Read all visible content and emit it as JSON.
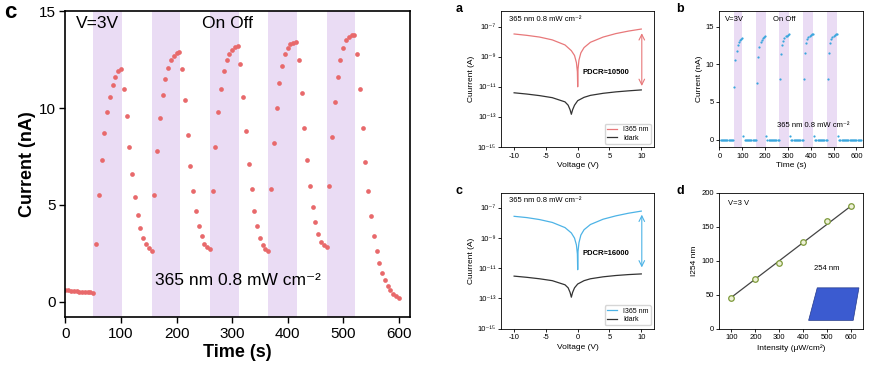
{
  "chart_data": [
    {
      "type": "scatter",
      "title": "c",
      "xlabel": "Time (s)",
      "ylabel": "Current (nA)",
      "annotations": [
        "V=3V",
        "On Off",
        "365 nm 0.8 mW cm⁻²"
      ],
      "color": "#e8696b",
      "marker": "o",
      "line_style": "none",
      "on_periods": [
        [
          50,
          102
        ],
        [
          155,
          207
        ],
        [
          260,
          312
        ],
        [
          365,
          417
        ],
        [
          470,
          522
        ]
      ],
      "x": [
        0,
        5,
        10,
        15,
        20,
        25,
        30,
        35,
        40,
        45,
        50,
        55,
        60,
        65,
        70,
        75,
        80,
        85,
        90,
        95,
        100,
        105,
        110,
        115,
        120,
        125,
        130,
        135,
        140,
        145,
        150,
        155,
        160,
        165,
        170,
        175,
        180,
        185,
        190,
        195,
        200,
        205,
        210,
        215,
        220,
        225,
        230,
        235,
        240,
        245,
        250,
        255,
        260,
        265,
        270,
        275,
        280,
        285,
        290,
        295,
        300,
        305,
        310,
        315,
        320,
        325,
        330,
        335,
        340,
        345,
        350,
        355,
        360,
        365,
        370,
        375,
        380,
        385,
        390,
        395,
        400,
        405,
        410,
        415,
        420,
        425,
        430,
        435,
        440,
        445,
        450,
        455,
        460,
        465,
        470,
        475,
        480,
        485,
        490,
        495,
        500,
        505,
        510,
        515,
        520,
        525,
        530,
        535,
        540,
        545,
        550,
        555,
        560,
        565,
        570,
        575,
        580,
        585,
        590,
        595,
        600
      ],
      "values": [
        0.6,
        0.58,
        0.56,
        0.55,
        0.53,
        0.52,
        0.5,
        0.5,
        0.48,
        0.47,
        0.46,
        3.0,
        5.5,
        7.3,
        8.7,
        9.8,
        10.6,
        11.2,
        11.6,
        11.9,
        12.0,
        11.0,
        9.6,
        8.0,
        6.6,
        5.4,
        4.5,
        3.8,
        3.3,
        3.0,
        2.75,
        2.6,
        5.5,
        7.8,
        9.5,
        10.7,
        11.5,
        12.1,
        12.5,
        12.7,
        12.85,
        12.9,
        12.0,
        10.4,
        8.6,
        7.0,
        5.7,
        4.7,
        3.9,
        3.4,
        3.0,
        2.8,
        2.7,
        5.7,
        8.0,
        9.8,
        11.0,
        11.9,
        12.5,
        12.8,
        13.0,
        13.15,
        13.2,
        12.3,
        10.6,
        8.8,
        7.1,
        5.8,
        4.7,
        3.9,
        3.3,
        2.9,
        2.7,
        2.6,
        5.8,
        8.2,
        10.0,
        11.3,
        12.2,
        12.8,
        13.1,
        13.3,
        13.35,
        13.4,
        12.5,
        10.8,
        9.0,
        7.3,
        6.0,
        4.9,
        4.1,
        3.5,
        3.1,
        2.9,
        2.8,
        6.0,
        8.5,
        10.3,
        11.6,
        12.5,
        13.1,
        13.5,
        13.7,
        13.8,
        13.8,
        12.8,
        11.0,
        9.0,
        7.2,
        5.7,
        4.4,
        3.4,
        2.6,
        2.0,
        1.5,
        1.1,
        0.8,
        0.6,
        0.4,
        0.3,
        0.2
      ],
      "xlim": [
        0,
        620
      ],
      "xticks": [
        0,
        100,
        200,
        300,
        400,
        500,
        600
      ],
      "ylim": [
        -0.8,
        15
      ],
      "yticks": [
        0,
        5,
        10,
        15
      ]
    },
    {
      "type": "line",
      "title": "a",
      "xlabel": "Voltage (V)",
      "ylabel": "Cuurrent (A)",
      "log": "y",
      "annotations": [
        "365 nm 0.8 mW cm⁻²",
        "PDCR≈10500"
      ],
      "legend": "lower right",
      "series": [
        {
          "name": "I365 nm",
          "color": "#e8787a",
          "x": [
            -10,
            -8,
            -6,
            -4,
            -2,
            -1,
            -0.5,
            -0.2,
            -0.05,
            0,
            0.05,
            0.2,
            0.5,
            1,
            2,
            4,
            6,
            8,
            10
          ],
          "values": [
            3.2e-08,
            2.6e-08,
            2e-08,
            1.3e-08,
            6e-09,
            2.5e-09,
            1.2e-09,
            4e-10,
            1e-10,
            1e-11,
            1.5e-10,
            6e-10,
            1.8e-09,
            4e-09,
            9e-09,
            2e-08,
            3.4e-08,
            5e-08,
            6.8e-08
          ]
        },
        {
          "name": "Idark",
          "color": "#333333",
          "x": [
            -10,
            -8,
            -6,
            -4,
            -2,
            -1.5,
            -1.2,
            -1,
            -0.8,
            -0.5,
            0,
            1,
            2,
            4,
            6,
            8,
            10
          ],
          "values": [
            4e-12,
            3.3e-12,
            2.6e-12,
            1.9e-12,
            1e-12,
            6e-13,
            3e-13,
            1.5e-13,
            3e-13,
            6e-13,
            1.2e-12,
            2e-12,
            2.7e-12,
            3.7e-12,
            4.6e-12,
            5.4e-12,
            6.2e-12
          ]
        }
      ],
      "xlim": [
        -12,
        12
      ],
      "xticks": [
        -10,
        -5,
        0,
        5,
        10
      ],
      "ylim": [
        1e-15,
        1e-06
      ],
      "yticks": [
        {
          "value": 1e-15,
          "label": "10⁻¹⁵"
        },
        {
          "value": 1e-13,
          "label": "10⁻¹³"
        },
        {
          "value": 1e-11,
          "label": "10⁻¹¹"
        },
        {
          "value": 1e-09,
          "label": "10⁻⁹"
        },
        {
          "value": 1e-07,
          "label": "10⁻⁷"
        }
      ]
    },
    {
      "type": "scatter",
      "title": "b",
      "xlabel": "Time (s)",
      "ylabel": "Current (nA)",
      "annotations": [
        "V=3V",
        "On Off",
        "365 nm 0.8 mW cm⁻²"
      ],
      "color": "#3aa6dd",
      "marker": "o",
      "line_style": "none",
      "on_periods": [
        [
          62,
          100
        ],
        [
          162,
          202
        ],
        [
          262,
          306
        ],
        [
          367,
          410
        ],
        [
          472,
          516
        ]
      ],
      "x": [
        0,
        5,
        10,
        15,
        20,
        25,
        30,
        35,
        40,
        45,
        50,
        55,
        60,
        65,
        70,
        75,
        80,
        85,
        90,
        95,
        100,
        105,
        110,
        115,
        120,
        125,
        130,
        135,
        140,
        145,
        150,
        155,
        160,
        165,
        170,
        175,
        180,
        185,
        190,
        195,
        200,
        205,
        210,
        215,
        220,
        225,
        230,
        235,
        240,
        245,
        250,
        255,
        260,
        265,
        270,
        275,
        280,
        285,
        290,
        295,
        300,
        305,
        310,
        315,
        320,
        325,
        330,
        335,
        340,
        345,
        350,
        355,
        360,
        365,
        370,
        375,
        380,
        385,
        390,
        395,
        400,
        405,
        410,
        415,
        420,
        425,
        430,
        435,
        440,
        445,
        450,
        455,
        460,
        465,
        470,
        475,
        480,
        485,
        490,
        495,
        500,
        505,
        510,
        515,
        520,
        525,
        530,
        535,
        540,
        545,
        550,
        555,
        560,
        565,
        570,
        575,
        580,
        585,
        590,
        595,
        600,
        605,
        610,
        615,
        620
      ],
      "values": [
        0,
        0,
        0,
        0,
        0,
        0,
        0,
        0,
        0,
        0,
        0,
        0,
        0,
        7.0,
        10.5,
        11.8,
        12.5,
        12.9,
        13.2,
        13.4,
        13.5,
        0.5,
        0,
        0,
        0,
        0,
        0,
        0,
        0,
        0,
        0,
        0,
        0,
        7.5,
        11.0,
        12.3,
        12.9,
        13.2,
        13.5,
        13.6,
        13.7,
        0.5,
        0,
        0,
        0,
        0,
        0,
        0,
        0,
        0,
        0,
        0,
        0,
        8.0,
        11.3,
        12.6,
        13.1,
        13.5,
        13.7,
        13.8,
        13.9,
        14.0,
        0.5,
        0,
        0,
        0,
        0,
        0,
        0,
        0,
        0,
        0,
        0,
        0,
        8.0,
        11.5,
        12.8,
        13.3,
        13.6,
        13.8,
        13.9,
        14.0,
        14.0,
        0.5,
        0,
        0,
        0,
        0,
        0,
        0,
        0,
        0,
        0,
        0,
        0,
        8.0,
        11.5,
        12.8,
        13.3,
        13.6,
        13.8,
        13.9,
        14.0,
        14.0,
        0.5,
        0,
        0,
        0,
        0,
        0,
        0,
        0,
        0,
        0,
        0,
        0,
        0,
        0,
        0,
        0,
        0,
        0,
        0,
        0,
        0
      ],
      "xlim": [
        0,
        630
      ],
      "xticks": [
        0,
        100,
        200,
        300,
        400,
        500,
        600
      ],
      "ylim": [
        -1,
        17
      ],
      "yticks": [
        0,
        5,
        10,
        15
      ]
    },
    {
      "type": "line",
      "title": "c",
      "xlabel": "Voltage (V)",
      "ylabel": "Cuurrent (A)",
      "log": "y",
      "annotations": [
        "365 nm 0.8 mW cm⁻²",
        "PDCR≈16000"
      ],
      "legend": "lower right",
      "series": [
        {
          "name": "I365 nm",
          "color": "#4db3e6",
          "x": [
            -10,
            -8,
            -6,
            -4,
            -2,
            -1,
            -0.5,
            -0.2,
            -0.05,
            0,
            0.05,
            0.2,
            0.5,
            1,
            2,
            4,
            6,
            8,
            10
          ],
          "values": [
            2.8e-08,
            2.3e-08,
            1.7e-08,
            1.1e-08,
            5e-09,
            2.2e-09,
            1e-09,
            3.5e-10,
            9e-11,
            8e-12,
            1.3e-10,
            5e-10,
            1.6e-09,
            3.6e-09,
            8e-09,
            1.8e-08,
            3e-08,
            4.5e-08,
            6.2e-08
          ]
        },
        {
          "name": "Idark",
          "color": "#333333",
          "x": [
            -10,
            -8,
            -6,
            -4,
            -2,
            -1.5,
            -1.2,
            -1,
            -0.8,
            -0.5,
            0,
            1,
            2,
            4,
            6,
            8,
            10
          ],
          "values": [
            3e-12,
            2.5e-12,
            2e-12,
            1.5e-12,
            8e-13,
            5e-13,
            2.5e-13,
            1.2e-13,
            2.5e-13,
            5e-13,
            9e-13,
            1.5e-12,
            2e-12,
            2.7e-12,
            3.3e-12,
            3.8e-12,
            4.2e-12
          ]
        }
      ],
      "xlim": [
        -12,
        12
      ],
      "xticks": [
        -10,
        -5,
        0,
        5,
        10
      ],
      "ylim": [
        1e-15,
        1e-06
      ],
      "yticks": [
        {
          "value": 1e-15,
          "label": "10⁻¹⁵"
        },
        {
          "value": 1e-13,
          "label": "10⁻¹³"
        },
        {
          "value": 1e-11,
          "label": "10⁻¹¹"
        },
        {
          "value": 1e-09,
          "label": "10⁻⁹"
        },
        {
          "value": 1e-07,
          "label": "10⁻⁷"
        }
      ]
    },
    {
      "type": "scatter",
      "title": "d",
      "xlabel": "Intensity (μW/cm²)",
      "ylabel": "I254 nm",
      "annotations": [
        "V=3 V",
        "254 nm"
      ],
      "series": [
        {
          "type": "scatter",
          "color": "#7d9a3a",
          "marker": "o",
          "line_style": "none",
          "x": [
            100,
            200,
            300,
            400,
            500,
            600
          ],
          "values": [
            45,
            73,
            97,
            127,
            158,
            180
          ]
        },
        {
          "type": "line",
          "color": "#444444",
          "line_style": "solid",
          "x": [
            100,
            600
          ],
          "values": [
            46,
            181
          ]
        }
      ],
      "xlim": [
        50,
        650
      ],
      "xticks": [
        100,
        200,
        300,
        400,
        500,
        600
      ],
      "ylim": [
        0,
        200
      ],
      "yticks": [
        0,
        50,
        100,
        150,
        200
      ]
    }
  ]
}
